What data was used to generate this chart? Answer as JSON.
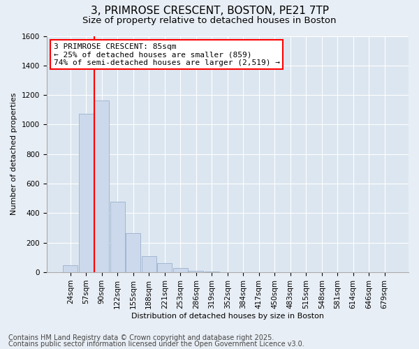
{
  "title1": "3, PRIMROSE CRESCENT, BOSTON, PE21 7TP",
  "title2": "Size of property relative to detached houses in Boston",
  "xlabel": "Distribution of detached houses by size in Boston",
  "ylabel": "Number of detached properties",
  "categories": [
    "24sqm",
    "57sqm",
    "90sqm",
    "122sqm",
    "155sqm",
    "188sqm",
    "221sqm",
    "253sqm",
    "286sqm",
    "319sqm",
    "352sqm",
    "384sqm",
    "417sqm",
    "450sqm",
    "483sqm",
    "515sqm",
    "548sqm",
    "581sqm",
    "614sqm",
    "646sqm",
    "679sqm"
  ],
  "values": [
    50,
    1075,
    1165,
    480,
    265,
    110,
    60,
    30,
    10,
    4,
    1,
    0,
    0,
    0,
    0,
    0,
    0,
    0,
    0,
    0,
    0
  ],
  "bar_color": "#ccd9ec",
  "bar_edge_color": "#9ab0cc",
  "property_line_x": 1.5,
  "annotation_line1": "3 PRIMROSE CRESCENT: 85sqm",
  "annotation_line2": "← 25% of detached houses are smaller (859)",
  "annotation_line3": "74% of semi-detached houses are larger (2,519) →",
  "annotation_box_color": "white",
  "annotation_box_edge_color": "red",
  "property_line_color": "red",
  "ylim": [
    0,
    1600
  ],
  "yticks": [
    0,
    200,
    400,
    600,
    800,
    1000,
    1200,
    1400,
    1600
  ],
  "footnote1": "Contains HM Land Registry data © Crown copyright and database right 2025.",
  "footnote2": "Contains public sector information licensed under the Open Government Licence v3.0.",
  "bg_color": "#e8eef5",
  "plot_bg_color": "#dce6f0",
  "title1_fontsize": 11,
  "title2_fontsize": 9.5,
  "axis_fontsize": 8,
  "tick_fontsize": 7.5,
  "footnote_fontsize": 7,
  "ann_fontsize": 8
}
